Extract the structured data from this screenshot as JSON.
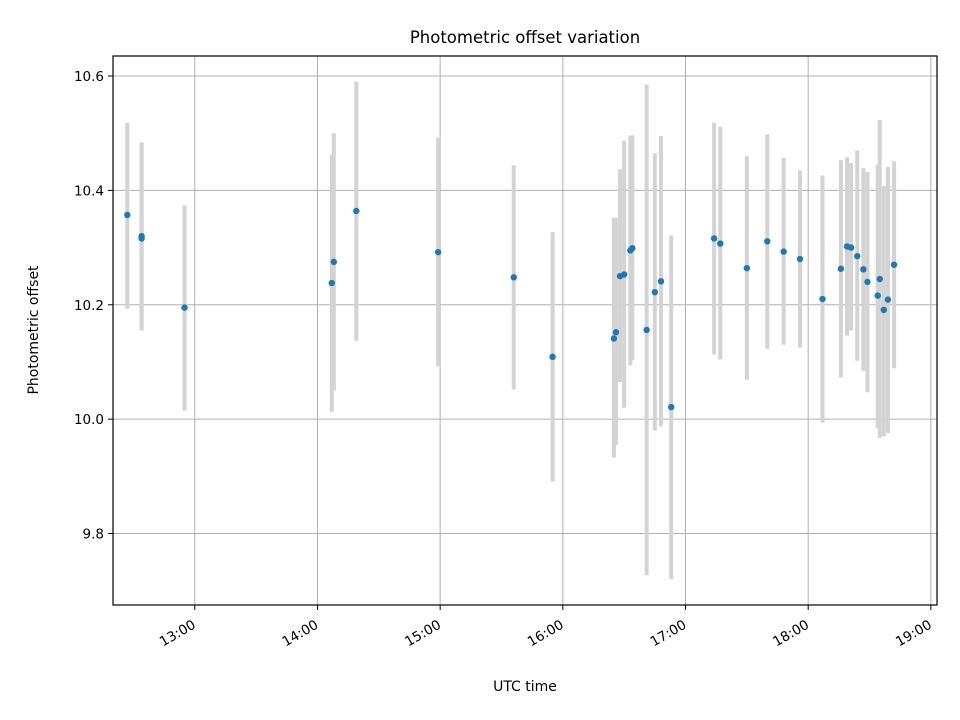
{
  "chart_data": {
    "type": "scatter",
    "title": "Photometric offset variation",
    "xlabel": "UTC time",
    "ylabel": "Photometric offset",
    "x_unit": "UTC time (HH:MM)",
    "xlim": [
      "12:20",
      "19:03"
    ],
    "ylim": [
      9.675,
      10.635
    ],
    "xticks": [
      "13:00",
      "14:00",
      "15:00",
      "16:00",
      "17:00",
      "18:00",
      "19:00"
    ],
    "yticks": [
      9.8,
      10.0,
      10.2,
      10.4,
      10.6
    ],
    "ytick_labels": [
      "9.8",
      "10.0",
      "10.2",
      "10.4",
      "10.6"
    ],
    "grid": true,
    "colors": {
      "point": "#1f77b4",
      "errorbar": "#d3d3d3"
    },
    "points": [
      {
        "x": "12:27",
        "y": 10.357,
        "ylo": 10.193,
        "yhi": 10.518
      },
      {
        "x": "12:34",
        "y": 10.32,
        "ylo": 10.155,
        "yhi": 10.484
      },
      {
        "x": "12:34",
        "y": 10.316,
        "ylo": 10.155,
        "yhi": 10.484
      },
      {
        "x": "12:55",
        "y": 10.195,
        "ylo": 10.015,
        "yhi": 10.374
      },
      {
        "x": "14:07",
        "y": 10.238,
        "ylo": 10.013,
        "yhi": 10.462
      },
      {
        "x": "14:08",
        "y": 10.275,
        "ylo": 10.05,
        "yhi": 10.5
      },
      {
        "x": "14:19",
        "y": 10.364,
        "ylo": 10.137,
        "yhi": 10.59
      },
      {
        "x": "14:59",
        "y": 10.292,
        "ylo": 10.092,
        "yhi": 10.492
      },
      {
        "x": "15:36",
        "y": 10.248,
        "ylo": 10.052,
        "yhi": 10.444
      },
      {
        "x": "15:55",
        "y": 10.109,
        "ylo": 9.891,
        "yhi": 10.327
      },
      {
        "x": "16:25",
        "y": 10.141,
        "ylo": 9.933,
        "yhi": 10.352
      },
      {
        "x": "16:26",
        "y": 10.152,
        "ylo": 9.955,
        "yhi": 10.352
      },
      {
        "x": "16:28",
        "y": 10.25,
        "ylo": 10.065,
        "yhi": 10.437
      },
      {
        "x": "16:30",
        "y": 10.253,
        "ylo": 10.02,
        "yhi": 10.487
      },
      {
        "x": "16:33",
        "y": 10.295,
        "ylo": 10.094,
        "yhi": 10.496
      },
      {
        "x": "16:34",
        "y": 10.299,
        "ylo": 10.103,
        "yhi": 10.496
      },
      {
        "x": "16:41",
        "y": 10.156,
        "ylo": 9.727,
        "yhi": 10.585
      },
      {
        "x": "16:45",
        "y": 10.222,
        "ylo": 9.98,
        "yhi": 10.465
      },
      {
        "x": "16:48",
        "y": 10.241,
        "ylo": 9.987,
        "yhi": 10.495
      },
      {
        "x": "16:53",
        "y": 10.021,
        "ylo": 9.72,
        "yhi": 10.321
      },
      {
        "x": "17:14",
        "y": 10.316,
        "ylo": 10.113,
        "yhi": 10.518
      },
      {
        "x": "17:17",
        "y": 10.307,
        "ylo": 10.104,
        "yhi": 10.511
      },
      {
        "x": "17:30",
        "y": 10.264,
        "ylo": 10.069,
        "yhi": 10.46
      },
      {
        "x": "17:40",
        "y": 10.311,
        "ylo": 10.123,
        "yhi": 10.498
      },
      {
        "x": "17:48",
        "y": 10.293,
        "ylo": 10.13,
        "yhi": 10.457
      },
      {
        "x": "17:56",
        "y": 10.28,
        "ylo": 10.125,
        "yhi": 10.435
      },
      {
        "x": "18:07",
        "y": 10.21,
        "ylo": 9.994,
        "yhi": 10.426
      },
      {
        "x": "18:16",
        "y": 10.263,
        "ylo": 10.073,
        "yhi": 10.453
      },
      {
        "x": "18:19",
        "y": 10.302,
        "ylo": 10.146,
        "yhi": 10.458
      },
      {
        "x": "18:21",
        "y": 10.3,
        "ylo": 10.155,
        "yhi": 10.448
      },
      {
        "x": "18:24",
        "y": 10.285,
        "ylo": 10.102,
        "yhi": 10.47
      },
      {
        "x": "18:27",
        "y": 10.262,
        "ylo": 10.084,
        "yhi": 10.439
      },
      {
        "x": "18:29",
        "y": 10.24,
        "ylo": 10.047,
        "yhi": 10.432
      },
      {
        "x": "18:34",
        "y": 10.216,
        "ylo": 9.985,
        "yhi": 10.445
      },
      {
        "x": "18:35",
        "y": 10.245,
        "ylo": 9.967,
        "yhi": 10.523
      },
      {
        "x": "18:37",
        "y": 10.191,
        "ylo": 9.97,
        "yhi": 10.408
      },
      {
        "x": "18:39",
        "y": 10.209,
        "ylo": 9.976,
        "yhi": 10.441
      },
      {
        "x": "18:42",
        "y": 10.27,
        "ylo": 10.089,
        "yhi": 10.451
      }
    ]
  }
}
